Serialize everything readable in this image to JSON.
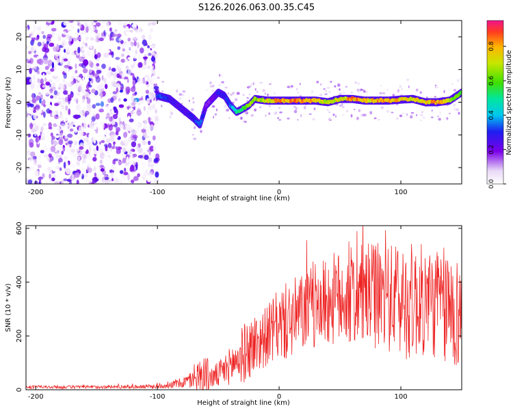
{
  "title": "S126.2026.063.00.35.C45",
  "chart_data": [
    {
      "type": "heatmap",
      "title": "S126.2026.063.00.35.C45",
      "xlabel": "Height of straight line (km)",
      "ylabel": "Frequency (Hz)",
      "xlim": [
        -208,
        150
      ],
      "ylim": [
        -25,
        25
      ],
      "xticks": [
        -200,
        -100,
        0,
        100
      ],
      "yticks": [
        -20,
        -10,
        0,
        10,
        20
      ],
      "colorbar": {
        "label": "Normalized spectral amplitude",
        "range": [
          0,
          0.95
        ],
        "ticks": [
          0,
          0.2,
          0.4,
          0.6,
          0.8
        ],
        "tick_labels": [
          "0.0",
          "0.2",
          "0.4",
          "0.6",
          "0.8"
        ]
      },
      "noise_region_x": [
        -208,
        -100
      ],
      "feature_track": {
        "x": [
          -100,
          -90,
          -80,
          -70,
          -65,
          -60,
          -55,
          -50,
          -45,
          -40,
          -35,
          -30,
          -25,
          -20,
          -10,
          0,
          10,
          20,
          30,
          40,
          50,
          60,
          70,
          80,
          90,
          100,
          110,
          120,
          130,
          140,
          150
        ],
        "freq": [
          2,
          1,
          -2,
          -5,
          -7,
          -1,
          1,
          3,
          2,
          -1,
          -3,
          -2,
          -1,
          1,
          0.5,
          0.5,
          0.5,
          0.5,
          0.5,
          0,
          1,
          1,
          0.5,
          0.5,
          0.5,
          0.8,
          1,
          0,
          0,
          0.5,
          3
        ],
        "amplitude": [
          0.35,
          0.3,
          0.25,
          0.3,
          0.4,
          0.2,
          0.2,
          0.3,
          0.3,
          0.35,
          0.5,
          0.6,
          0.65,
          0.7,
          0.75,
          0.85,
          0.85,
          0.85,
          0.8,
          0.7,
          0.75,
          0.85,
          0.8,
          0.85,
          0.85,
          0.8,
          0.75,
          0.8,
          0.85,
          0.7,
          0.6
        ]
      }
    },
    {
      "type": "line",
      "xlabel": "Height of straight line (km)",
      "ylabel": "SNR (10 * v/v)",
      "xlim": [
        -208,
        150
      ],
      "ylim": [
        0,
        610
      ],
      "xticks": [
        -200,
        -100,
        0,
        100
      ],
      "yticks": [
        0,
        200,
        400,
        600
      ],
      "color": "#ee2222",
      "series": [
        {
          "name": "SNR",
          "x": [
            -208,
            -150,
            -100,
            -90,
            -80,
            -70,
            -62,
            -55,
            -50,
            -40,
            -30,
            -20,
            -10,
            0,
            10,
            20,
            30,
            40,
            50,
            60,
            70,
            80,
            90,
            100,
            110,
            120,
            130,
            140,
            150
          ],
          "mean": [
            10,
            10,
            12,
            18,
            25,
            40,
            60,
            45,
            55,
            90,
            130,
            170,
            200,
            240,
            260,
            290,
            310,
            330,
            340,
            345,
            350,
            350,
            340,
            330,
            330,
            330,
            320,
            300,
            280
          ],
          "amplitude": [
            6,
            6,
            8,
            12,
            20,
            35,
            90,
            40,
            50,
            70,
            110,
            120,
            110,
            140,
            150,
            150,
            160,
            170,
            180,
            190,
            190,
            200,
            200,
            220,
            220,
            210,
            210,
            230,
            200
          ]
        }
      ]
    }
  ]
}
